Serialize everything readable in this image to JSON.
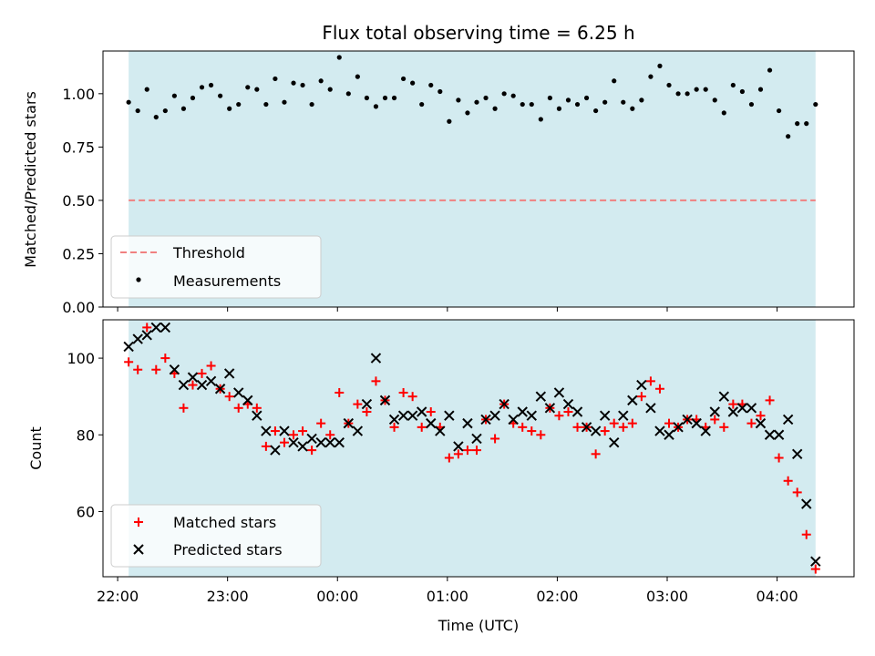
{
  "chart_data": [
    {
      "type": "scatter",
      "title": "Flux total observing time = 6.25 h",
      "ylabel": "Matched/Predicted stars",
      "xlabel": "",
      "ylim": [
        0,
        1.2
      ],
      "xlim": [
        "21:52",
        "04:42"
      ],
      "y_ticks": [
        "0.00",
        "0.25",
        "0.50",
        "0.75",
        "1.00"
      ],
      "y_tick_values": [
        0,
        0.25,
        0.5,
        0.75,
        1.0
      ],
      "grid": false,
      "legend_position": "lower-left",
      "shaded_span": [
        "22:06",
        "04:21"
      ],
      "shade_color": "#d3ebf0",
      "threshold": {
        "name": "Threshold",
        "value": 0.5,
        "color": "#f08080",
        "style": "dashed"
      },
      "series": [
        {
          "name": "Measurements",
          "marker": "dot",
          "color": "#000000",
          "points": [
            [
              "22:06",
              0.96
            ],
            [
              "22:11",
              0.92
            ],
            [
              "22:16",
              1.02
            ],
            [
              "22:21",
              0.89
            ],
            [
              "22:26",
              0.92
            ],
            [
              "22:31",
              0.99
            ],
            [
              "22:36",
              0.93
            ],
            [
              "22:41",
              0.98
            ],
            [
              "22:46",
              1.03
            ],
            [
              "22:51",
              1.04
            ],
            [
              "22:56",
              0.99
            ],
            [
              "23:01",
              0.93
            ],
            [
              "23:06",
              0.95
            ],
            [
              "23:11",
              1.03
            ],
            [
              "23:16",
              1.02
            ],
            [
              "23:21",
              0.95
            ],
            [
              "23:26",
              1.07
            ],
            [
              "23:31",
              0.96
            ],
            [
              "23:36",
              1.05
            ],
            [
              "23:41",
              1.04
            ],
            [
              "23:46",
              0.95
            ],
            [
              "23:51",
              1.06
            ],
            [
              "23:56",
              1.02
            ],
            [
              "00:01",
              1.17
            ],
            [
              "00:06",
              1.0
            ],
            [
              "00:11",
              1.08
            ],
            [
              "00:16",
              0.98
            ],
            [
              "00:21",
              0.94
            ],
            [
              "00:26",
              0.98
            ],
            [
              "00:31",
              0.98
            ],
            [
              "00:36",
              1.07
            ],
            [
              "00:41",
              1.05
            ],
            [
              "00:46",
              0.95
            ],
            [
              "00:51",
              1.04
            ],
            [
              "00:56",
              1.01
            ],
            [
              "01:01",
              0.87
            ],
            [
              "01:06",
              0.97
            ],
            [
              "01:11",
              0.91
            ],
            [
              "01:16",
              0.96
            ],
            [
              "01:21",
              0.98
            ],
            [
              "01:26",
              0.93
            ],
            [
              "01:31",
              1.0
            ],
            [
              "01:36",
              0.99
            ],
            [
              "01:41",
              0.95
            ],
            [
              "01:46",
              0.95
            ],
            [
              "01:51",
              0.88
            ],
            [
              "01:56",
              0.98
            ],
            [
              "02:01",
              0.93
            ],
            [
              "02:06",
              0.97
            ],
            [
              "02:11",
              0.95
            ],
            [
              "02:16",
              0.98
            ],
            [
              "02:21",
              0.92
            ],
            [
              "02:26",
              0.96
            ],
            [
              "02:31",
              1.06
            ],
            [
              "02:36",
              0.96
            ],
            [
              "02:41",
              0.93
            ],
            [
              "02:46",
              0.97
            ],
            [
              "02:51",
              1.08
            ],
            [
              "02:56",
              1.13
            ],
            [
              "03:01",
              1.04
            ],
            [
              "03:06",
              1.0
            ],
            [
              "03:11",
              1.0
            ],
            [
              "03:16",
              1.02
            ],
            [
              "03:21",
              1.02
            ],
            [
              "03:26",
              0.97
            ],
            [
              "03:31",
              0.91
            ],
            [
              "03:36",
              1.04
            ],
            [
              "03:41",
              1.01
            ],
            [
              "03:46",
              0.95
            ],
            [
              "03:51",
              1.02
            ],
            [
              "03:56",
              1.11
            ],
            [
              "04:01",
              0.92
            ],
            [
              "04:06",
              0.8
            ],
            [
              "04:11",
              0.86
            ],
            [
              "04:16",
              0.86
            ],
            [
              "04:21",
              0.95
            ]
          ]
        }
      ]
    },
    {
      "type": "scatter",
      "title": "",
      "ylabel": "Count",
      "xlabel": "Time (UTC)",
      "ylim": [
        43,
        110
      ],
      "xlim": [
        "21:52",
        "04:42"
      ],
      "y_ticks": [
        "60",
        "80",
        "100"
      ],
      "y_tick_values": [
        60,
        80,
        100
      ],
      "x_ticks": [
        "22:00",
        "23:00",
        "00:00",
        "01:00",
        "02:00",
        "03:00",
        "04:00"
      ],
      "grid": false,
      "legend_position": "lower-left",
      "shaded_span": [
        "22:06",
        "04:21"
      ],
      "shade_color": "#d3ebf0",
      "series": [
        {
          "name": "Matched stars",
          "marker": "plus",
          "color": "#ff0000",
          "points": [
            [
              "22:06",
              99
            ],
            [
              "22:11",
              97
            ],
            [
              "22:16",
              108
            ],
            [
              "22:21",
              97
            ],
            [
              "22:26",
              100
            ],
            [
              "22:31",
              96
            ],
            [
              "22:36",
              87
            ],
            [
              "22:41",
              93
            ],
            [
              "22:46",
              96
            ],
            [
              "22:51",
              98
            ],
            [
              "22:56",
              92
            ],
            [
              "23:01",
              90
            ],
            [
              "23:06",
              87
            ],
            [
              "23:11",
              88
            ],
            [
              "23:16",
              87
            ],
            [
              "23:21",
              77
            ],
            [
              "23:26",
              81
            ],
            [
              "23:31",
              78
            ],
            [
              "23:36",
              80
            ],
            [
              "23:41",
              81
            ],
            [
              "23:46",
              76
            ],
            [
              "23:51",
              83
            ],
            [
              "23:56",
              80
            ],
            [
              "00:01",
              91
            ],
            [
              "00:06",
              83
            ],
            [
              "00:11",
              88
            ],
            [
              "00:16",
              86
            ],
            [
              "00:21",
              94
            ],
            [
              "00:26",
              89
            ],
            [
              "00:31",
              82
            ],
            [
              "00:36",
              91
            ],
            [
              "00:41",
              90
            ],
            [
              "00:46",
              82
            ],
            [
              "00:51",
              86
            ],
            [
              "00:56",
              82
            ],
            [
              "01:01",
              74
            ],
            [
              "01:06",
              75
            ],
            [
              "01:11",
              76
            ],
            [
              "01:16",
              76
            ],
            [
              "01:21",
              84
            ],
            [
              "01:26",
              79
            ],
            [
              "01:31",
              88
            ],
            [
              "01:36",
              83
            ],
            [
              "01:41",
              82
            ],
            [
              "01:46",
              81
            ],
            [
              "01:51",
              80
            ],
            [
              "01:56",
              87
            ],
            [
              "02:01",
              85
            ],
            [
              "02:06",
              86
            ],
            [
              "02:11",
              82
            ],
            [
              "02:16",
              82
            ],
            [
              "02:21",
              75
            ],
            [
              "02:26",
              81
            ],
            [
              "02:31",
              83
            ],
            [
              "02:36",
              82
            ],
            [
              "02:41",
              83
            ],
            [
              "02:46",
              90
            ],
            [
              "02:51",
              94
            ],
            [
              "02:56",
              92
            ],
            [
              "03:01",
              83
            ],
            [
              "03:06",
              82
            ],
            [
              "03:11",
              84
            ],
            [
              "03:16",
              84
            ],
            [
              "03:21",
              82
            ],
            [
              "03:26",
              84
            ],
            [
              "03:31",
              82
            ],
            [
              "03:36",
              88
            ],
            [
              "03:41",
              88
            ],
            [
              "03:46",
              83
            ],
            [
              "03:51",
              85
            ],
            [
              "03:56",
              89
            ],
            [
              "04:01",
              74
            ],
            [
              "04:06",
              68
            ],
            [
              "04:11",
              65
            ],
            [
              "04:16",
              54
            ],
            [
              "04:21",
              45
            ]
          ]
        },
        {
          "name": "Predicted stars",
          "marker": "x",
          "color": "#000000",
          "points": [
            [
              "22:06",
              103
            ],
            [
              "22:11",
              105
            ],
            [
              "22:16",
              106
            ],
            [
              "22:21",
              108
            ],
            [
              "22:26",
              108
            ],
            [
              "22:31",
              97
            ],
            [
              "22:36",
              93
            ],
            [
              "22:41",
              95
            ],
            [
              "22:46",
              93
            ],
            [
              "22:51",
              94
            ],
            [
              "22:56",
              92
            ],
            [
              "23:01",
              96
            ],
            [
              "23:06",
              91
            ],
            [
              "23:11",
              89
            ],
            [
              "23:16",
              85
            ],
            [
              "23:21",
              81
            ],
            [
              "23:26",
              76
            ],
            [
              "23:31",
              81
            ],
            [
              "23:36",
              78
            ],
            [
              "23:41",
              77
            ],
            [
              "23:46",
              79
            ],
            [
              "23:51",
              78
            ],
            [
              "23:56",
              78
            ],
            [
              "00:01",
              78
            ],
            [
              "00:06",
              83
            ],
            [
              "00:11",
              81
            ],
            [
              "00:16",
              88
            ],
            [
              "00:21",
              100
            ],
            [
              "00:26",
              89
            ],
            [
              "00:31",
              84
            ],
            [
              "00:36",
              85
            ],
            [
              "00:41",
              85
            ],
            [
              "00:46",
              86
            ],
            [
              "00:51",
              83
            ],
            [
              "00:56",
              81
            ],
            [
              "01:01",
              85
            ],
            [
              "01:06",
              77
            ],
            [
              "01:11",
              83
            ],
            [
              "01:16",
              79
            ],
            [
              "01:21",
              84
            ],
            [
              "01:26",
              85
            ],
            [
              "01:31",
              88
            ],
            [
              "01:36",
              84
            ],
            [
              "01:41",
              86
            ],
            [
              "01:46",
              85
            ],
            [
              "01:51",
              90
            ],
            [
              "01:56",
              87
            ],
            [
              "02:01",
              91
            ],
            [
              "02:06",
              88
            ],
            [
              "02:11",
              86
            ],
            [
              "02:16",
              82
            ],
            [
              "02:21",
              81
            ],
            [
              "02:26",
              85
            ],
            [
              "02:31",
              78
            ],
            [
              "02:36",
              85
            ],
            [
              "02:41",
              89
            ],
            [
              "02:46",
              93
            ],
            [
              "02:51",
              87
            ],
            [
              "02:56",
              81
            ],
            [
              "03:01",
              80
            ],
            [
              "03:06",
              82
            ],
            [
              "03:11",
              84
            ],
            [
              "03:16",
              83
            ],
            [
              "03:21",
              81
            ],
            [
              "03:26",
              86
            ],
            [
              "03:31",
              90
            ],
            [
              "03:36",
              86
            ],
            [
              "03:41",
              87
            ],
            [
              "03:46",
              87
            ],
            [
              "03:51",
              83
            ],
            [
              "03:56",
              80
            ],
            [
              "04:01",
              80
            ],
            [
              "04:06",
              84
            ],
            [
              "04:11",
              75
            ],
            [
              "04:16",
              62
            ],
            [
              "04:21",
              47
            ]
          ]
        }
      ]
    }
  ]
}
